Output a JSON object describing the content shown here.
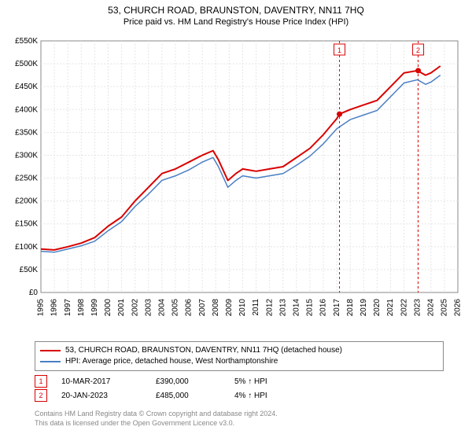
{
  "title": "53, CHURCH ROAD, BRAUNSTON, DAVENTRY, NN11 7HQ",
  "subtitle": "Price paid vs. HM Land Registry's House Price Index (HPI)",
  "chart": {
    "type": "line",
    "background_color": "#ffffff",
    "plot_border_color": "#888888",
    "grid_color": "#e5e5e5",
    "grid_dash": "2,2",
    "axis_font_size": 10,
    "axis_color": "#000000",
    "y": {
      "min": 0,
      "max": 550000,
      "tick_step": 50000,
      "tick_labels": [
        "£0",
        "£50K",
        "£100K",
        "£150K",
        "£200K",
        "£250K",
        "£300K",
        "£350K",
        "£400K",
        "£450K",
        "£500K",
        "£550K"
      ]
    },
    "x": {
      "min": 1995,
      "max": 2026,
      "tick_step": 1,
      "tick_labels": [
        "1995",
        "1996",
        "1997",
        "1998",
        "1999",
        "2000",
        "2001",
        "2002",
        "2003",
        "2004",
        "2005",
        "2006",
        "2007",
        "2008",
        "2009",
        "2010",
        "2011",
        "2012",
        "2013",
        "2014",
        "2015",
        "2016",
        "2017",
        "2018",
        "2019",
        "2020",
        "2021",
        "2022",
        "2023",
        "2024",
        "2025",
        "2026"
      ]
    },
    "series": [
      {
        "name": "53, CHURCH ROAD, BRAUNSTON, DAVENTRY, NN11 7HQ (detached house)",
        "color": "#d90000",
        "line_width": 2,
        "data": [
          [
            1995,
            95000
          ],
          [
            1996,
            93000
          ],
          [
            1997,
            100000
          ],
          [
            1998,
            108000
          ],
          [
            1999,
            120000
          ],
          [
            2000,
            145000
          ],
          [
            2001,
            165000
          ],
          [
            2002,
            200000
          ],
          [
            2003,
            230000
          ],
          [
            2004,
            260000
          ],
          [
            2005,
            270000
          ],
          [
            2006,
            285000
          ],
          [
            2007,
            300000
          ],
          [
            2007.8,
            310000
          ],
          [
            2008.2,
            290000
          ],
          [
            2008.9,
            245000
          ],
          [
            2009.5,
            260000
          ],
          [
            2010,
            270000
          ],
          [
            2011,
            265000
          ],
          [
            2012,
            270000
          ],
          [
            2013,
            275000
          ],
          [
            2014,
            295000
          ],
          [
            2015,
            315000
          ],
          [
            2016,
            345000
          ],
          [
            2017,
            380000
          ],
          [
            2017.2,
            390000
          ],
          [
            2018,
            400000
          ],
          [
            2019,
            410000
          ],
          [
            2020,
            420000
          ],
          [
            2021,
            450000
          ],
          [
            2022,
            480000
          ],
          [
            2023,
            485000
          ],
          [
            2023.6,
            475000
          ],
          [
            2024,
            480000
          ],
          [
            2024.7,
            495000
          ]
        ]
      },
      {
        "name": "HPI: Average price, detached house, West Northamptonshire",
        "color": "#4a7fc4",
        "line_width": 1.5,
        "data": [
          [
            1995,
            90000
          ],
          [
            1996,
            88000
          ],
          [
            1997,
            95000
          ],
          [
            1998,
            102000
          ],
          [
            1999,
            112000
          ],
          [
            2000,
            135000
          ],
          [
            2001,
            155000
          ],
          [
            2002,
            188000
          ],
          [
            2003,
            215000
          ],
          [
            2004,
            245000
          ],
          [
            2005,
            255000
          ],
          [
            2006,
            268000
          ],
          [
            2007,
            285000
          ],
          [
            2007.8,
            295000
          ],
          [
            2008.2,
            275000
          ],
          [
            2008.9,
            230000
          ],
          [
            2009.5,
            245000
          ],
          [
            2010,
            255000
          ],
          [
            2011,
            250000
          ],
          [
            2012,
            255000
          ],
          [
            2013,
            260000
          ],
          [
            2014,
            278000
          ],
          [
            2015,
            298000
          ],
          [
            2016,
            325000
          ],
          [
            2017,
            358000
          ],
          [
            2018,
            378000
          ],
          [
            2019,
            388000
          ],
          [
            2020,
            398000
          ],
          [
            2021,
            428000
          ],
          [
            2022,
            458000
          ],
          [
            2023,
            465000
          ],
          [
            2023.6,
            455000
          ],
          [
            2024,
            460000
          ],
          [
            2024.7,
            475000
          ]
        ]
      }
    ],
    "markers": [
      {
        "n": 1,
        "x": 2017.2,
        "y": 390000,
        "color": "#d90000"
      },
      {
        "n": 2,
        "x": 2023.05,
        "y": 485000,
        "color": "#d90000"
      }
    ]
  },
  "legend": {
    "items": [
      {
        "color": "#d90000",
        "label": "53, CHURCH ROAD, BRAUNSTON, DAVENTRY, NN11 7HQ (detached house)"
      },
      {
        "color": "#4a7fc4",
        "label": "HPI: Average price, detached house, West Northamptonshire"
      }
    ]
  },
  "transactions": [
    {
      "n": "1",
      "color": "#d90000",
      "date": "10-MAR-2017",
      "price": "£390,000",
      "delta": "5% ↑ HPI"
    },
    {
      "n": "2",
      "color": "#d90000",
      "date": "20-JAN-2023",
      "price": "£485,000",
      "delta": "4% ↑ HPI"
    }
  ],
  "footer": {
    "line1": "Contains HM Land Registry data © Crown copyright and database right 2024.",
    "line2": "This data is licensed under the Open Government Licence v3.0."
  }
}
